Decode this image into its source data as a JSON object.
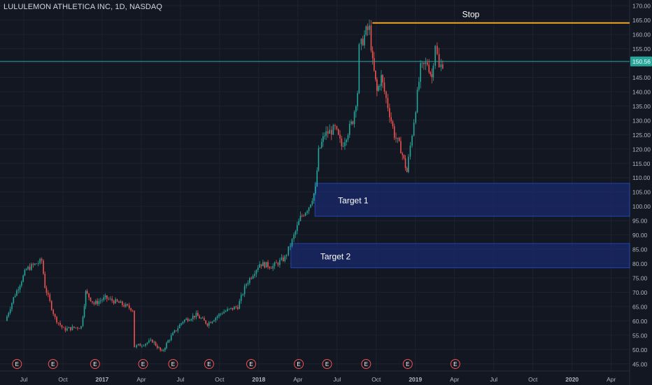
{
  "header": {
    "symbol_title": "LULULEMON ATHLETICA INC, 1D, NASDAQ"
  },
  "colors": {
    "background": "#131722",
    "grid": "#1e2230",
    "axis_text": "#b2b5be",
    "bull": "#26a69a",
    "bear": "#ef5350",
    "current_price_line": "#26a69a",
    "current_price_badge": "#26a69a",
    "stop_line": "#f5a623",
    "target_fill": "#1a2a6c",
    "target_border": "#2962ff",
    "earnings_marker": "#ef5350"
  },
  "chart_data": {
    "type": "candlestick",
    "title": "LULULEMON ATHLETICA INC, 1D, NASDAQ",
    "y_axis": {
      "min": 42.5,
      "max": 172,
      "ticks": [
        45,
        50,
        55,
        60,
        65,
        70,
        75,
        80,
        85,
        90,
        95,
        100,
        105,
        110,
        115,
        120,
        125,
        130,
        135,
        140,
        145,
        150,
        155,
        160,
        165,
        170
      ],
      "tick_labels": [
        "45.00",
        "50.00",
        "55.00",
        "60.00",
        "65.00",
        "70.00",
        "75.00",
        "80.00",
        "85.00",
        "90.00",
        "95.00",
        "100.00",
        "105.00",
        "110.00",
        "115.00",
        "120.00",
        "125.00",
        "130.00",
        "135.00",
        "140.00",
        "145.00",
        "150.00",
        "155.00",
        "160.00",
        "165.00",
        "170.00"
      ]
    },
    "x_axis": {
      "labels": [
        "Jul",
        "Oct",
        "2017",
        "Apr",
        "Jul",
        "Oct",
        "2018",
        "Apr",
        "Jul",
        "Oct",
        "2019",
        "Apr",
        "Jul",
        "Oct",
        "2020",
        "Apr"
      ],
      "label_month_index": [
        0,
        3,
        6,
        9,
        12,
        15,
        18,
        21,
        24,
        27,
        30,
        33,
        36,
        39,
        42,
        45
      ],
      "start": "2016-06",
      "end": "2020-05"
    },
    "current_price": {
      "value": 150.56,
      "label": "150.56"
    },
    "price_anchors": [
      {
        "date": "2016-06-01",
        "price": 60
      },
      {
        "date": "2016-06-20",
        "price": 68
      },
      {
        "date": "2016-07-20",
        "price": 78
      },
      {
        "date": "2016-08-25",
        "price": 81
      },
      {
        "date": "2016-09-01",
        "price": 72
      },
      {
        "date": "2016-09-25",
        "price": 61
      },
      {
        "date": "2016-10-15",
        "price": 57
      },
      {
        "date": "2016-11-25",
        "price": 58
      },
      {
        "date": "2016-12-05",
        "price": 70
      },
      {
        "date": "2016-12-25",
        "price": 66
      },
      {
        "date": "2017-01-20",
        "price": 68
      },
      {
        "date": "2017-02-25",
        "price": 66
      },
      {
        "date": "2017-03-25",
        "price": 64
      },
      {
        "date": "2017-03-30",
        "price": 51
      },
      {
        "date": "2017-04-20",
        "price": 52
      },
      {
        "date": "2017-05-10",
        "price": 53
      },
      {
        "date": "2017-06-01",
        "price": 49
      },
      {
        "date": "2017-06-15",
        "price": 53
      },
      {
        "date": "2017-07-20",
        "price": 60
      },
      {
        "date": "2017-08-20",
        "price": 62
      },
      {
        "date": "2017-09-15",
        "price": 59
      },
      {
        "date": "2017-10-20",
        "price": 63
      },
      {
        "date": "2017-11-25",
        "price": 65
      },
      {
        "date": "2017-12-15",
        "price": 73
      },
      {
        "date": "2018-01-15",
        "price": 80
      },
      {
        "date": "2018-02-15",
        "price": 79
      },
      {
        "date": "2018-03-15",
        "price": 82
      },
      {
        "date": "2018-04-01",
        "price": 88
      },
      {
        "date": "2018-04-20",
        "price": 96
      },
      {
        "date": "2018-05-10",
        "price": 100
      },
      {
        "date": "2018-05-25",
        "price": 106
      },
      {
        "date": "2018-06-01",
        "price": 119
      },
      {
        "date": "2018-06-15",
        "price": 125
      },
      {
        "date": "2018-07-10",
        "price": 127
      },
      {
        "date": "2018-07-25",
        "price": 121
      },
      {
        "date": "2018-08-20",
        "price": 130
      },
      {
        "date": "2018-08-31",
        "price": 140
      },
      {
        "date": "2018-09-05",
        "price": 155
      },
      {
        "date": "2018-09-20",
        "price": 161
      },
      {
        "date": "2018-09-28",
        "price": 162
      },
      {
        "date": "2018-10-05",
        "price": 150
      },
      {
        "date": "2018-10-15",
        "price": 140
      },
      {
        "date": "2018-10-25",
        "price": 145
      },
      {
        "date": "2018-11-10",
        "price": 135
      },
      {
        "date": "2018-11-25",
        "price": 125
      },
      {
        "date": "2018-12-10",
        "price": 120
      },
      {
        "date": "2018-12-24",
        "price": 112
      },
      {
        "date": "2019-01-10",
        "price": 130
      },
      {
        "date": "2019-01-25",
        "price": 148
      },
      {
        "date": "2019-02-10",
        "price": 150
      },
      {
        "date": "2019-02-20",
        "price": 145
      },
      {
        "date": "2019-03-01",
        "price": 157
      },
      {
        "date": "2019-03-10",
        "price": 148
      },
      {
        "date": "2019-03-18",
        "price": 150
      }
    ],
    "earnings_events": [
      "E",
      "E",
      "E",
      "E",
      "E",
      "E",
      "E",
      "E",
      "E",
      "E",
      "E",
      "E"
    ],
    "earnings_dates": [
      "2016-06-08",
      "2016-08-31",
      "2016-12-07",
      "2017-03-29",
      "2017-06-07",
      "2017-08-30",
      "2017-12-06",
      "2018-03-27",
      "2018-06-01",
      "2018-08-31",
      "2018-12-06",
      "2019-03-27"
    ],
    "annotations": [
      {
        "kind": "horizontal-ray",
        "label": "Stop",
        "price": 164,
        "from_date": "2018-10-01"
      },
      {
        "kind": "zone",
        "label": "Target 1",
        "price_low": 96.5,
        "price_high": 108,
        "from_date": "2018-05-20"
      },
      {
        "kind": "zone",
        "label": "Target 2",
        "price_low": 78.5,
        "price_high": 87,
        "from_date": "2018-03-25"
      }
    ]
  }
}
